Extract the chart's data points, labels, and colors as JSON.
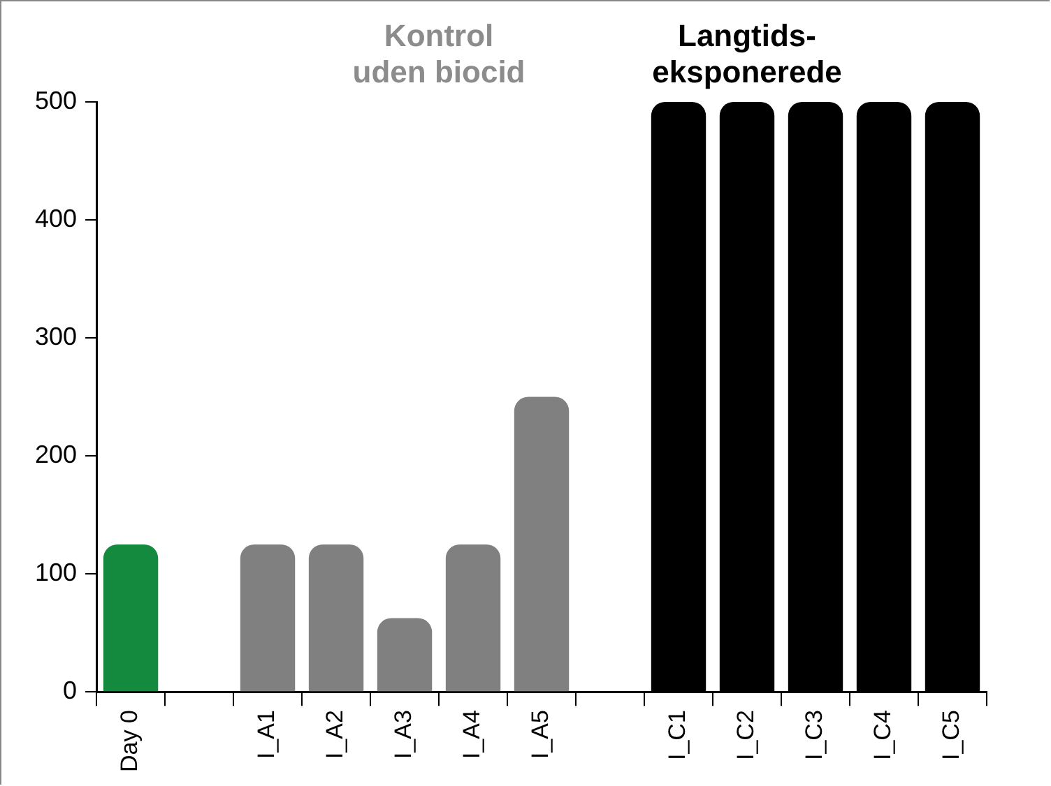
{
  "chart_data": {
    "type": "bar",
    "categories": [
      "Day 0",
      null,
      "I_A1",
      "I_A2",
      "I_A3",
      "I_A4",
      "I_A5",
      null,
      "I_C1",
      "I_C2",
      "I_C3",
      "I_C4",
      "I_C5"
    ],
    "values": [
      125,
      null,
      125,
      125,
      62.5,
      125,
      250,
      null,
      500,
      500,
      500,
      500,
      500
    ],
    "colors": [
      "#138a3e",
      null,
      "#808080",
      "#808080",
      "#808080",
      "#808080",
      "#808080",
      null,
      "#000000",
      "#000000",
      "#000000",
      "#000000",
      "#000000"
    ],
    "ylim": [
      0,
      500
    ],
    "yticks": [
      0,
      100,
      200,
      300,
      400,
      500
    ],
    "grid": false,
    "legend": false,
    "annotations": [
      "Kontrol\nuden biocid",
      "Langtids-\neksponerede"
    ]
  }
}
